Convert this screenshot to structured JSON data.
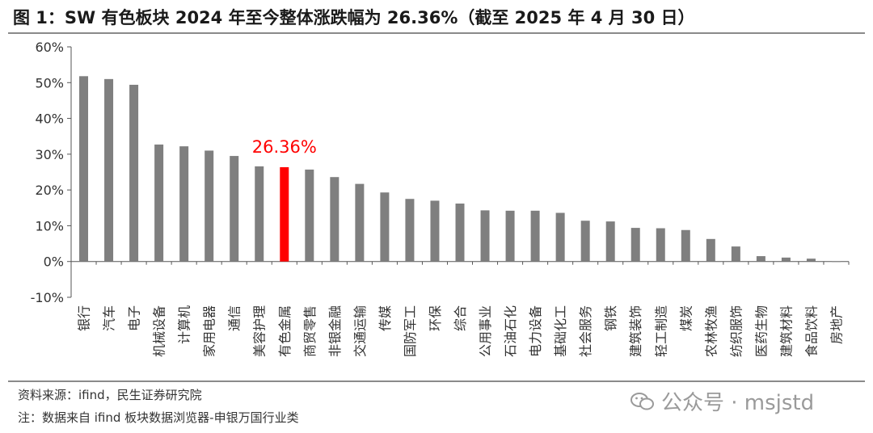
{
  "title": "图 1：SW 有色板块 2024 年至今整体涨跌幅为 26.36%（截至 2025 年 4 月 30 日）",
  "source": "资料来源：ifind，民生证券研究院",
  "note": "注：数据来自 ifind 板块数据浏览器-申银万国行业类",
  "watermark": "公众号 · msjstd",
  "highlight_label": "26.36%",
  "colors": {
    "bar": "#7f7f7f",
    "highlight": "#ff0000",
    "axis": "#555555"
  },
  "chart_data": {
    "type": "bar",
    "categories": [
      "银行",
      "汽车",
      "电子",
      "机械设备",
      "计算机",
      "家用电器",
      "通信",
      "美容护理",
      "有色金属",
      "商贸零售",
      "非银金融",
      "交通运输",
      "传媒",
      "国防军工",
      "环保",
      "综合",
      "公用事业",
      "石油石化",
      "电力设备",
      "基础化工",
      "社会服务",
      "钢铁",
      "建筑装饰",
      "轻工制造",
      "煤炭",
      "农林牧渔",
      "纺织服饰",
      "医药生物",
      "建筑材料",
      "食品饮料",
      "房地产"
    ],
    "values": [
      51.8,
      51.0,
      49.4,
      32.7,
      32.2,
      31.0,
      29.5,
      26.6,
      26.36,
      25.7,
      23.6,
      21.7,
      19.3,
      17.5,
      17.0,
      16.2,
      14.3,
      14.2,
      14.2,
      13.6,
      11.4,
      11.2,
      9.4,
      9.3,
      8.8,
      6.3,
      4.2,
      1.5,
      1.1,
      0.8,
      0.1
    ],
    "highlight_index": 8,
    "ylim": [
      -10,
      60
    ],
    "yticks": [
      -10,
      0,
      10,
      20,
      30,
      40,
      50,
      60
    ],
    "ytick_labels": [
      "-10%",
      "0%",
      "10%",
      "20%",
      "30%",
      "40%",
      "50%",
      "60%"
    ],
    "grid": false
  }
}
